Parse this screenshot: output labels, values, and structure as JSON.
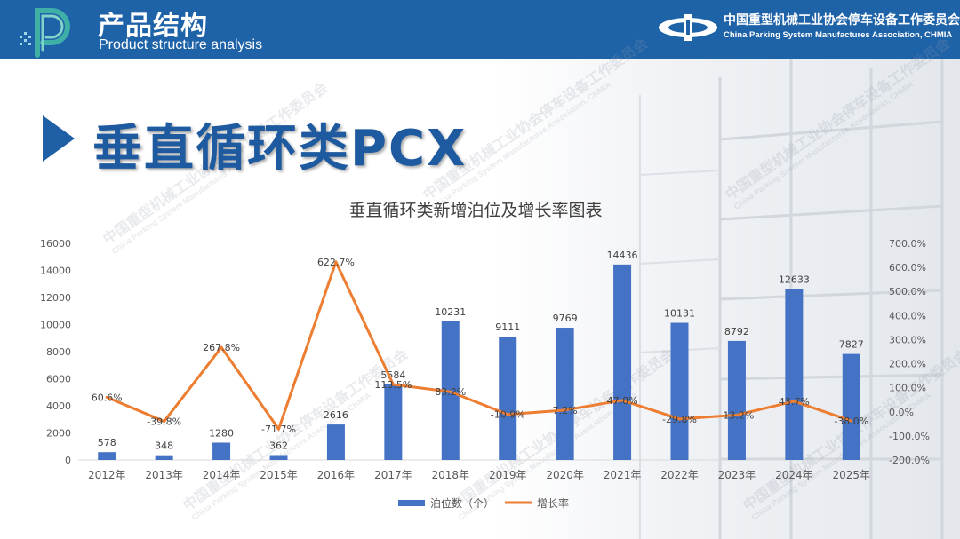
{
  "header": {
    "title": "产品结构",
    "subtitle": "Product structure analysis",
    "assoc_name_cn": "中国重型机械工业协会停车设备工作委员会",
    "assoc_name_en": "China Parking System Manufactures Association, CHMIA"
  },
  "section": {
    "title": "垂直循环类PCX",
    "arrow_icon": "play-triangle-icon"
  },
  "colors": {
    "header_bg": "#1e62a8",
    "section_title": "#1e5aa0",
    "bar": "#4472c4",
    "line": "#ed7d31"
  },
  "chart_data": {
    "type": "bar",
    "title": "垂直循环类新增泊位及增长率图表",
    "categories": [
      "2012年",
      "2013年",
      "2014年",
      "2015年",
      "2016年",
      "2017年",
      "2018年",
      "2019年",
      "2020年",
      "2021年",
      "2022年",
      "2023年",
      "2024年",
      "2025年"
    ],
    "series": [
      {
        "name": "泊位数（个）",
        "type": "bar",
        "axis": "left",
        "values": [
          578,
          348,
          1280,
          362,
          2616,
          5584,
          10231,
          9111,
          9769,
          14436,
          10131,
          8792,
          12633,
          7827
        ],
        "labels": [
          "578",
          "348",
          "1280",
          "362",
          "2616",
          "5584",
          "10231",
          "9111",
          "9769",
          "14436",
          "10131",
          "8792",
          "12633",
          "7827"
        ]
      },
      {
        "name": "增长率",
        "type": "line",
        "axis": "right",
        "values": [
          60.6,
          -39.8,
          267.8,
          -71.7,
          622.7,
          113.5,
          83.2,
          -10.9,
          7.2,
          47.8,
          -29.8,
          -13.2,
          43.7,
          -38.0
        ],
        "labels": [
          "60.6%",
          "-39.8%",
          "267.8%",
          "-71.7%",
          "622.7%",
          "113.5%",
          "83.2%",
          "-10.9%",
          "7.2%",
          "47.8%",
          "-29.8%",
          "-13.2%",
          "43.7%",
          "-38.0%"
        ]
      }
    ],
    "y_left": {
      "ylim": [
        0,
        16000
      ],
      "ticks": [
        "0",
        "2000",
        "4000",
        "6000",
        "8000",
        "10000",
        "12000",
        "14000",
        "16000"
      ]
    },
    "y_right": {
      "ylim": [
        -200,
        700
      ],
      "ticks": [
        "-200.0%",
        "-100.0%",
        "0.0%",
        "100.0%",
        "200.0%",
        "300.0%",
        "400.0%",
        "500.0%",
        "600.0%",
        "700.0%"
      ]
    },
    "grid": false,
    "legend": "bottom-center"
  },
  "watermark": {
    "cn": "中国重型机械工业协会停车设备工作委员会",
    "en": "China Parking System Manufactures Association, CHMIA"
  }
}
